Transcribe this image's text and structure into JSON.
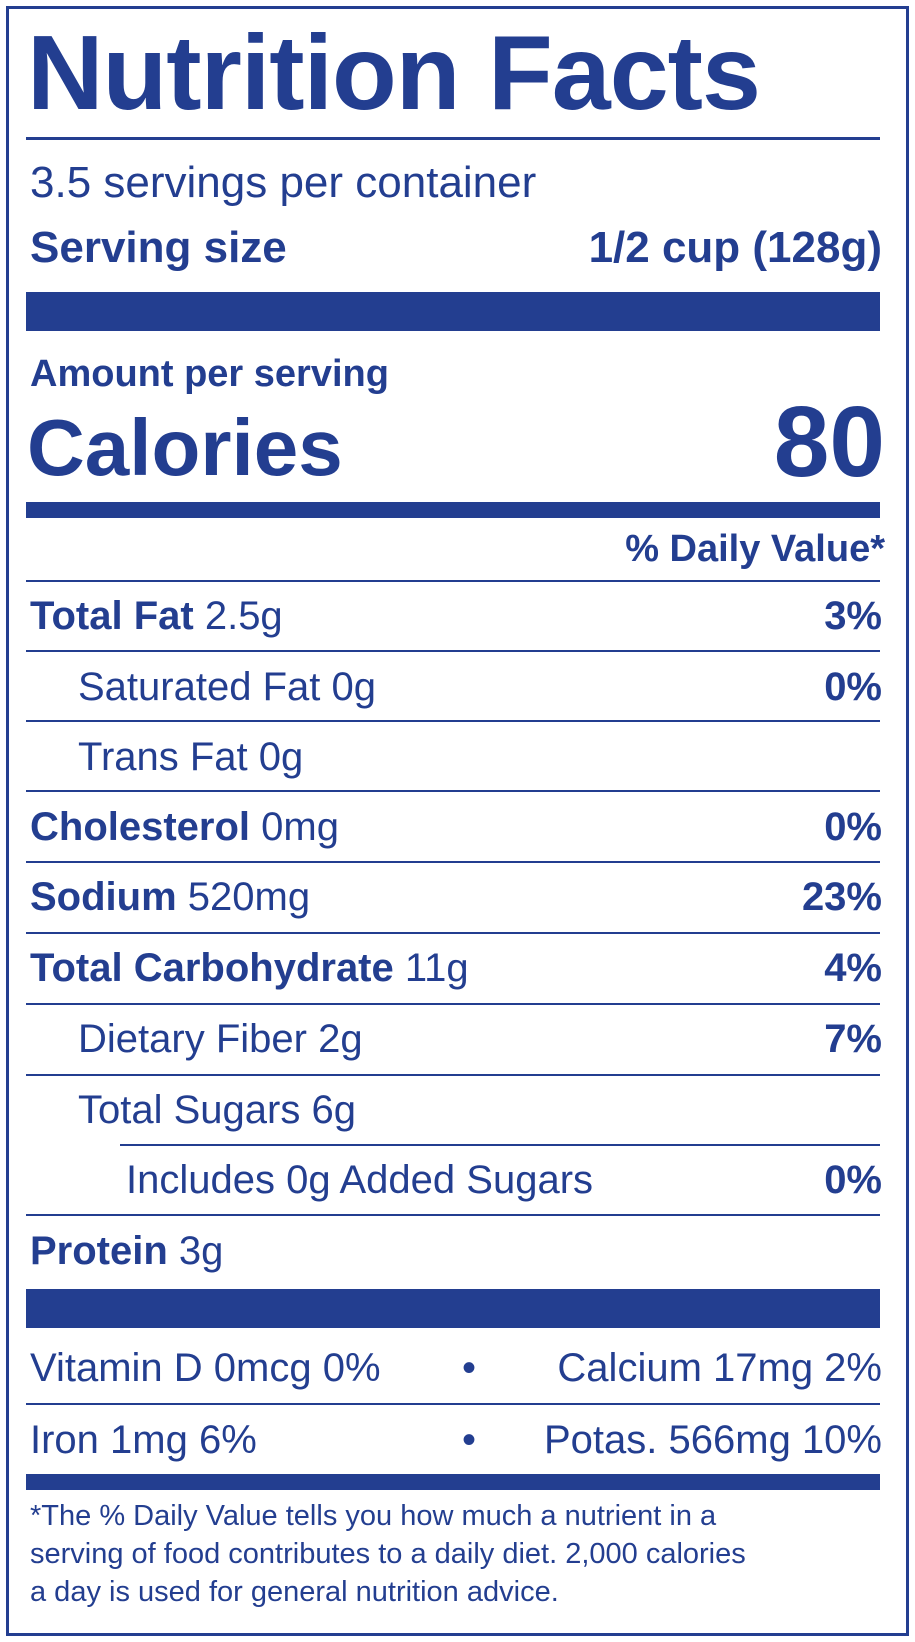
{
  "title": "Nutrition Facts",
  "servings_per_container": "3.5 servings per container",
  "serving_size_label": "Serving size",
  "serving_size_value": "1/2 cup (128g)",
  "amount_per_serving": "Amount per serving",
  "calories_label": "Calories",
  "calories_value": "80",
  "daily_value_header": "% Daily Value*",
  "nutrients": {
    "total_fat": {
      "name": "Total Fat",
      "amount": "2.5g",
      "dv": "3%"
    },
    "saturated_fat": {
      "name": "Saturated Fat",
      "amount": "0g",
      "dv": "0%"
    },
    "trans_fat": {
      "name": "Trans Fat",
      "amount": "0g"
    },
    "cholesterol": {
      "name": "Cholesterol",
      "amount": "0mg",
      "dv": "0%"
    },
    "sodium": {
      "name": "Sodium",
      "amount": "520mg",
      "dv": "23%"
    },
    "total_carbohydrate": {
      "name": "Total Carbohydrate",
      "amount": "11g",
      "dv": "4%"
    },
    "dietary_fiber": {
      "name": "Dietary Fiber",
      "amount": "2g",
      "dv": "7%"
    },
    "total_sugars": {
      "name": "Total Sugars",
      "amount": "6g"
    },
    "added_sugars": {
      "name": "Includes 0g Added Sugars",
      "dv": "0%"
    },
    "protein": {
      "name": "Protein",
      "amount": "3g"
    }
  },
  "micronutrients": {
    "vitamin_d": "Vitamin D 0mcg 0%",
    "calcium": "Calcium 17mg 2%",
    "iron": "Iron 1mg 6%",
    "potassium": "Potas. 566mg 10%",
    "separator": "•"
  },
  "footnote": {
    "line1": "*The % Daily Value tells you how much a nutrient in a",
    "line2": "serving of food contributes to a daily diet. 2,000 calories",
    "line3": "a day is used for general nutrition advice."
  },
  "colors": {
    "ink": "#233e90",
    "background": "#ffffff"
  }
}
